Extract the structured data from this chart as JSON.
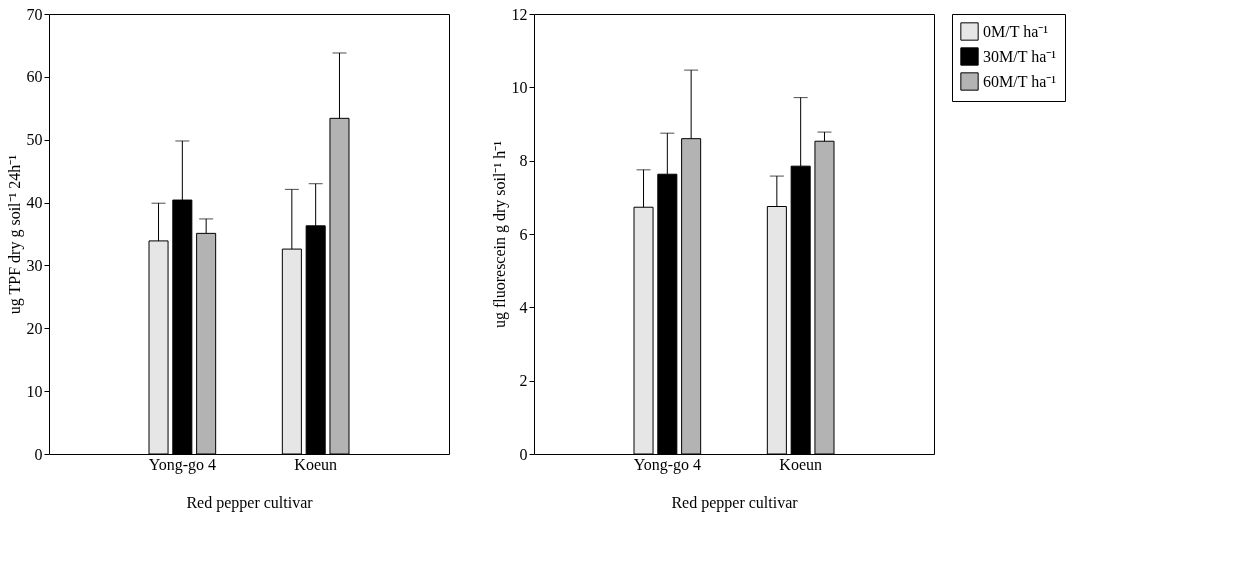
{
  "chart_data": [
    {
      "type": "bar",
      "categories": [
        "Yong-go 4",
        "Koeun"
      ],
      "xlabel": "Red pepper cultivar",
      "ylabel": "ug TPF dry g soil⁻¹ 24h⁻¹",
      "ylim": [
        0,
        70
      ],
      "yticks": [
        0,
        10,
        20,
        30,
        40,
        50,
        60,
        70
      ],
      "series": [
        {
          "color": "#e6e6e6",
          "values": [
            33.9,
            32.6
          ],
          "errors": [
            [
              33.9,
              39.9
            ],
            [
              32.6,
              42.1
            ]
          ]
        },
        {
          "color": "#000000",
          "values": [
            40.4,
            36.3
          ],
          "errors": [
            [
              40.4,
              49.8
            ],
            [
              36.3,
              43.0
            ]
          ]
        },
        {
          "color": "#b3b3b3",
          "values": [
            35.1,
            53.4
          ],
          "errors": [
            [
              35.1,
              37.4
            ],
            [
              53.4,
              63.8
            ]
          ]
        }
      ]
    },
    {
      "type": "bar",
      "categories": [
        "Yong-go 4",
        "Koeun"
      ],
      "xlabel": "Red pepper cultivar",
      "ylabel": "ug fluorescein g dry soil⁻¹ h⁻¹",
      "ylim": [
        0,
        12
      ],
      "yticks": [
        0,
        2,
        4,
        6,
        8,
        10,
        12
      ],
      "legend": "right",
      "series": [
        {
          "name": "0M/T ha⁻¹",
          "color": "#e6e6e6",
          "values": [
            6.73,
            6.75
          ],
          "errors": [
            [
              6.73,
              7.75
            ],
            [
              6.75,
              7.58
            ]
          ]
        },
        {
          "name": "30M/T ha⁻¹",
          "color": "#000000",
          "values": [
            7.63,
            7.85
          ],
          "errors": [
            [
              7.63,
              8.75
            ],
            [
              7.85,
              9.72
            ]
          ]
        },
        {
          "name": "60M/T ha⁻¹",
          "color": "#b3b3b3",
          "values": [
            8.6,
            8.53
          ],
          "errors": [
            [
              8.6,
              10.47
            ],
            [
              8.53,
              8.78
            ]
          ]
        }
      ]
    }
  ]
}
